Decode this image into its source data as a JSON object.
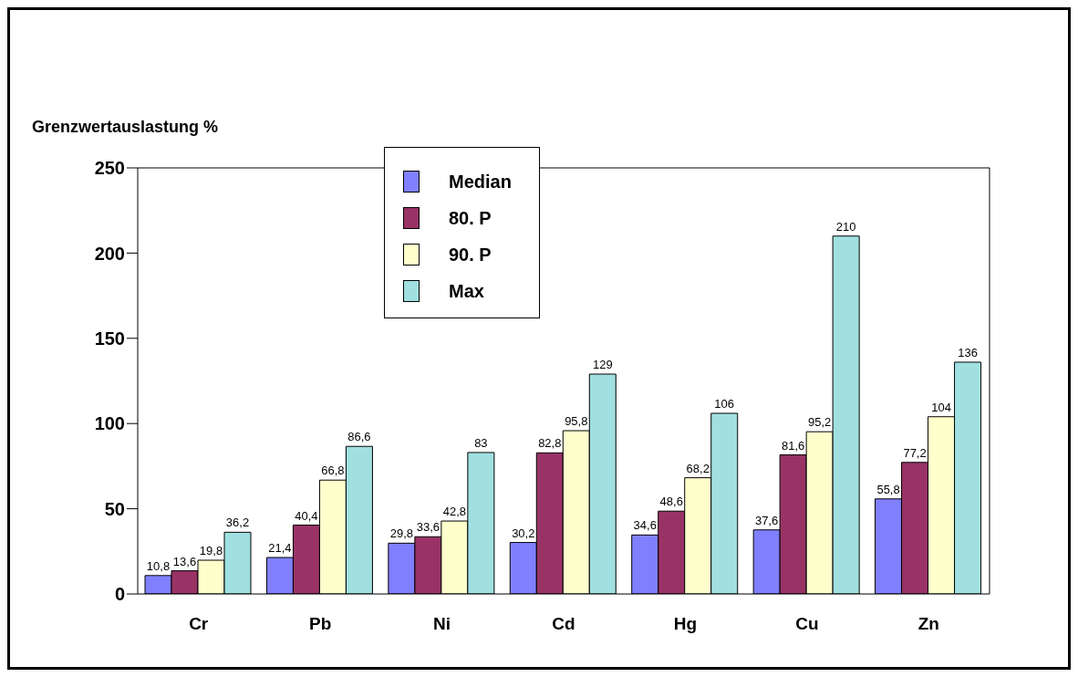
{
  "chart_data": {
    "type": "bar",
    "ylabel": "Grenzwertauslastung %",
    "categories": [
      "Cr",
      "Pb",
      "Ni",
      "Cd",
      "Hg",
      "Cu",
      "Zn"
    ],
    "ylim": [
      0,
      250
    ],
    "yticks": [
      0,
      50,
      100,
      150,
      200,
      250
    ],
    "legend": "top",
    "series": [
      {
        "name": "Median",
        "color": "#8080ff",
        "values": [
          10.8,
          21.4,
          29.8,
          30.2,
          34.6,
          37.6,
          55.8
        ],
        "value_labels": [
          "10,8",
          "21,4",
          "29,8",
          "30,2",
          "34,6",
          "37,6",
          "55,8"
        ]
      },
      {
        "name": "80. P",
        "color": "#993366",
        "values": [
          13.6,
          40.4,
          33.6,
          82.8,
          48.6,
          81.6,
          77.2
        ],
        "value_labels": [
          "13,6",
          "40,4",
          "33,6",
          "82,8",
          "48,6",
          "81,6",
          "77,2"
        ]
      },
      {
        "name": "90. P",
        "color": "#ffffcc",
        "values": [
          19.8,
          66.8,
          42.8,
          95.8,
          68.2,
          95.2,
          104
        ],
        "value_labels": [
          "19,8",
          "66,8",
          "42,8",
          "95,8",
          "68,2",
          "95,2",
          "104"
        ]
      },
      {
        "name": "Max",
        "color": "#a0e0e0",
        "values": [
          36.2,
          86.6,
          83,
          129,
          106,
          210,
          136
        ],
        "value_labels": [
          "36,2",
          "86,6",
          "83",
          "129",
          "106",
          "210",
          "136"
        ]
      }
    ]
  }
}
